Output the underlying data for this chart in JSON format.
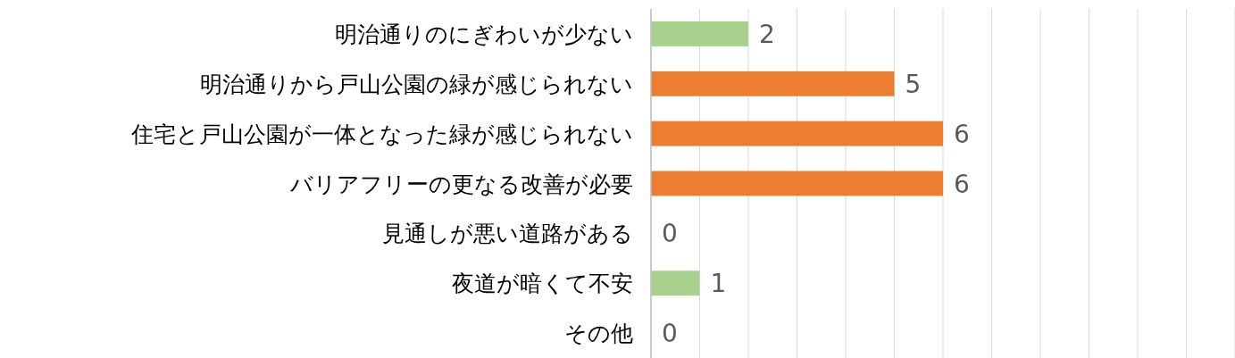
{
  "chart_data": {
    "type": "bar",
    "orientation": "horizontal",
    "categories": [
      "明治通りのにぎわいが少ない",
      "明治通りから戸山公園の緑が感じられない",
      "住宅と戸山公園が一体となった緑が感じられない",
      "バリアフリーの更なる改善が必要",
      "見通しが悪い道路がある",
      "夜道が暗くて不安",
      "その他"
    ],
    "values": [
      2,
      5,
      6,
      6,
      0,
      1,
      0
    ],
    "colors": [
      "#a9d18e",
      "#ed7d31",
      "#ed7d31",
      "#ed7d31",
      "#a9d18e",
      "#a9d18e",
      "#a9d18e"
    ],
    "xlim": [
      0,
      12
    ],
    "xticks": [
      {
        "value": 0,
        "label": null
      },
      {
        "value": 1,
        "label": null
      },
      {
        "value": 2,
        "label": null
      },
      {
        "value": 3,
        "label": null
      },
      {
        "value": 4,
        "label": null
      },
      {
        "value": 5,
        "label": null
      },
      {
        "value": 6,
        "label": null
      },
      {
        "value": 7,
        "label": null
      },
      {
        "value": 8,
        "label": null
      },
      {
        "value": 9,
        "label": null
      },
      {
        "value": 10,
        "label": null
      },
      {
        "value": 11,
        "label": null
      },
      {
        "value": 12,
        "label": null
      }
    ],
    "grid": "x",
    "tick_labels": "y",
    "data_labels": true
  }
}
